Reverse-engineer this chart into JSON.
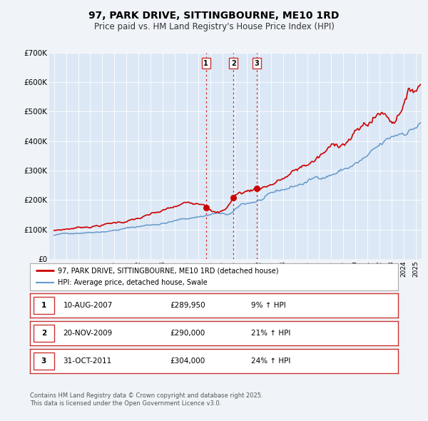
{
  "title": "97, PARK DRIVE, SITTINGBOURNE, ME10 1RD",
  "subtitle": "Price paid vs. HM Land Registry's House Price Index (HPI)",
  "title_fontsize": 10,
  "subtitle_fontsize": 8.5,
  "background_color": "#f0f4f8",
  "plot_bg_color": "#dce8f5",
  "legend_label_red": "97, PARK DRIVE, SITTINGBOURNE, ME10 1RD (detached house)",
  "legend_label_blue": "HPI: Average price, detached house, Swale",
  "transactions": [
    {
      "num": 1,
      "date_label": "10-AUG-2007",
      "year": 2007.61,
      "price": 289950,
      "pct": "9%",
      "direction": "↑"
    },
    {
      "num": 2,
      "date_label": "20-NOV-2009",
      "year": 2009.89,
      "price": 290000,
      "pct": "21%",
      "direction": "↑"
    },
    {
      "num": 3,
      "date_label": "31-OCT-2011",
      "year": 2011.83,
      "price": 304000,
      "pct": "24%",
      "direction": "↑"
    }
  ],
  "table_entries": [
    {
      "num": 1,
      "date": "10-AUG-2007",
      "price": "£289,950",
      "pct": "9% ↑ HPI"
    },
    {
      "num": 2,
      "date": "20-NOV-2009",
      "price": "£290,000",
      "pct": "21% ↑ HPI"
    },
    {
      "num": 3,
      "date": "31-OCT-2011",
      "price": "£304,000",
      "pct": "24% ↑ HPI"
    }
  ],
  "footer_line1": "Contains HM Land Registry data © Crown copyright and database right 2025.",
  "footer_line2": "This data is licensed under the Open Government Licence v3.0.",
  "ylim": [
    0,
    700000
  ],
  "yticks": [
    0,
    100000,
    200000,
    300000,
    400000,
    500000,
    600000,
    700000
  ],
  "ytick_labels": [
    "£0",
    "£100K",
    "£200K",
    "£300K",
    "£400K",
    "£500K",
    "£600K",
    "£700K"
  ],
  "red_color": "#cc0000",
  "blue_color": "#6699cc",
  "vline_color": "#cc0000",
  "border_red": "#cc3333",
  "border_gray": "#999999"
}
